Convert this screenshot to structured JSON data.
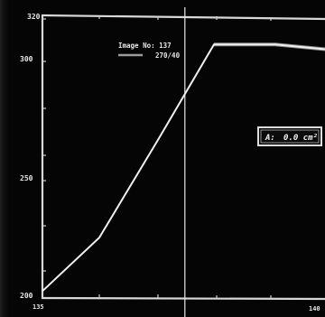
{
  "header": {
    "image_no_label": "Image No: 137",
    "image_range": "270/40"
  },
  "area_readout": {
    "label": "A:",
    "value": "0.0 cm²"
  },
  "colors": {
    "background": "#050505",
    "trace": "#f0f0f0",
    "legend_swatch": "#9a9a9a",
    "axis": "#d8d8d8"
  },
  "chart_data": {
    "type": "line",
    "title": "",
    "xlabel": "",
    "ylabel": "",
    "ylim": [
      200,
      320
    ],
    "y_tick_labels": [
      "320",
      "300",
      "250",
      "200"
    ],
    "x_tick_labels": [
      "135",
      "140"
    ],
    "grid": false,
    "cursor_x_fraction": 0.52,
    "series": [
      {
        "values_y": [
          203,
          226,
          268,
          309,
          309,
          309,
          307
        ]
      }
    ]
  }
}
